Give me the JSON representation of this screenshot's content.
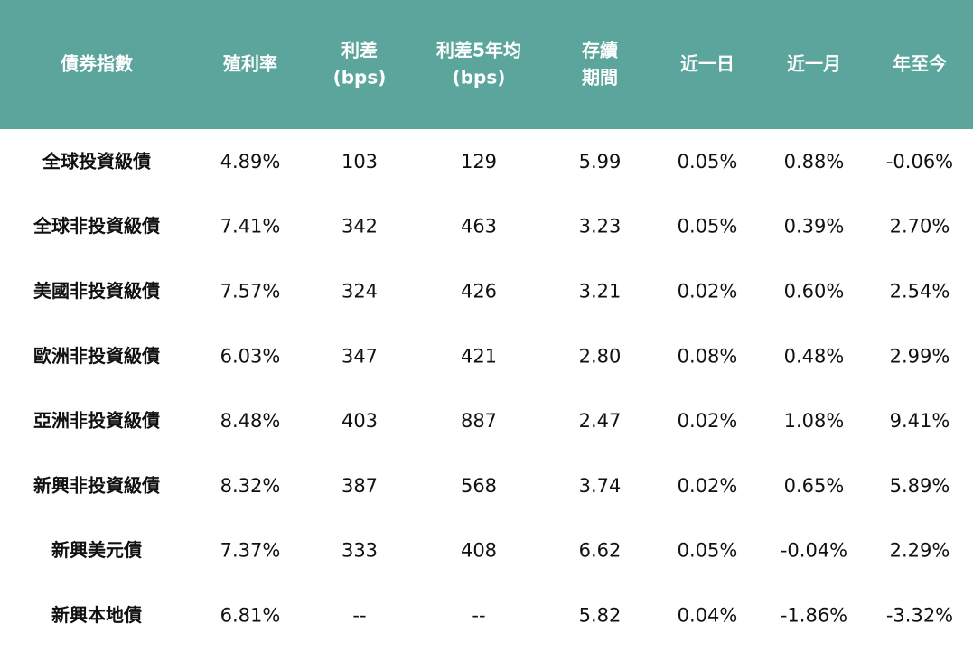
{
  "table": {
    "header": [
      [
        "債券指數"
      ],
      [
        "殖利率"
      ],
      [
        "利差",
        "(bps)"
      ],
      [
        "利差5年均",
        "(bps)"
      ],
      [
        "存續",
        "期間"
      ],
      [
        "近一日"
      ],
      [
        "近一月"
      ],
      [
        "年至今"
      ]
    ],
    "rows": [
      [
        "全球投資級債",
        "4.89%",
        "103",
        "129",
        "5.99",
        "0.05%",
        "0.88%",
        "-0.06%"
      ],
      [
        "全球非投資級債",
        "7.41%",
        "342",
        "463",
        "3.23",
        "0.05%",
        "0.39%",
        "2.70%"
      ],
      [
        "美國非投資級債",
        "7.57%",
        "324",
        "426",
        "3.21",
        "0.02%",
        "0.60%",
        "2.54%"
      ],
      [
        "歐洲非投資級債",
        "6.03%",
        "347",
        "421",
        "2.80",
        "0.08%",
        "0.48%",
        "2.99%"
      ],
      [
        "亞洲非投資級債",
        "8.48%",
        "403",
        "887",
        "2.47",
        "0.02%",
        "1.08%",
        "9.41%"
      ],
      [
        "新興非投資級債",
        "8.32%",
        "387",
        "568",
        "3.74",
        "0.02%",
        "0.65%",
        "5.89%"
      ],
      [
        "新興美元債",
        "7.37%",
        "333",
        "408",
        "6.62",
        "0.05%",
        "-0.04%",
        "2.29%"
      ],
      [
        "新興本地債",
        "6.81%",
        "--",
        "--",
        "5.82",
        "0.04%",
        "-1.86%",
        "-3.32%"
      ]
    ],
    "header_color": "#5ba59c",
    "positive_color": "#c00000",
    "negative_color": "#4e9b93"
  }
}
